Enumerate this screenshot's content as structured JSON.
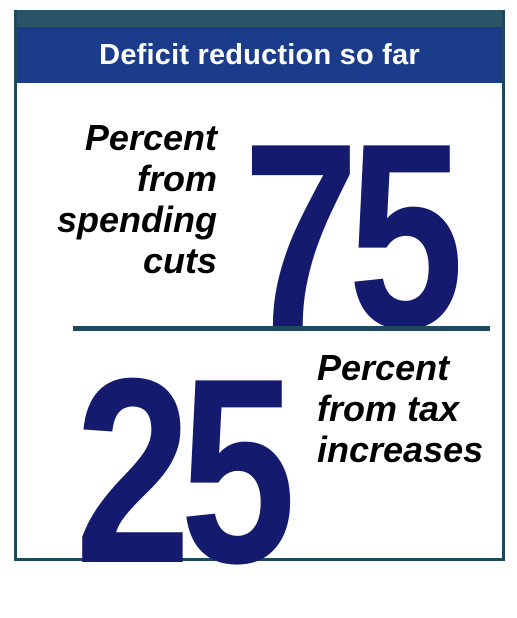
{
  "header": {
    "title": "Deficit reduction so far"
  },
  "spending": {
    "value": "75",
    "caption_lines": [
      "Percent",
      "from",
      "spending",
      "cuts"
    ]
  },
  "taxes": {
    "value": "25",
    "caption_lines": [
      "Percent",
      "from tax",
      "increases"
    ]
  },
  "colors": {
    "header_background": "#1a3c8a",
    "top_band": "#2a5567",
    "number_color": "#141a6e",
    "divider": "#1f4a5e"
  }
}
